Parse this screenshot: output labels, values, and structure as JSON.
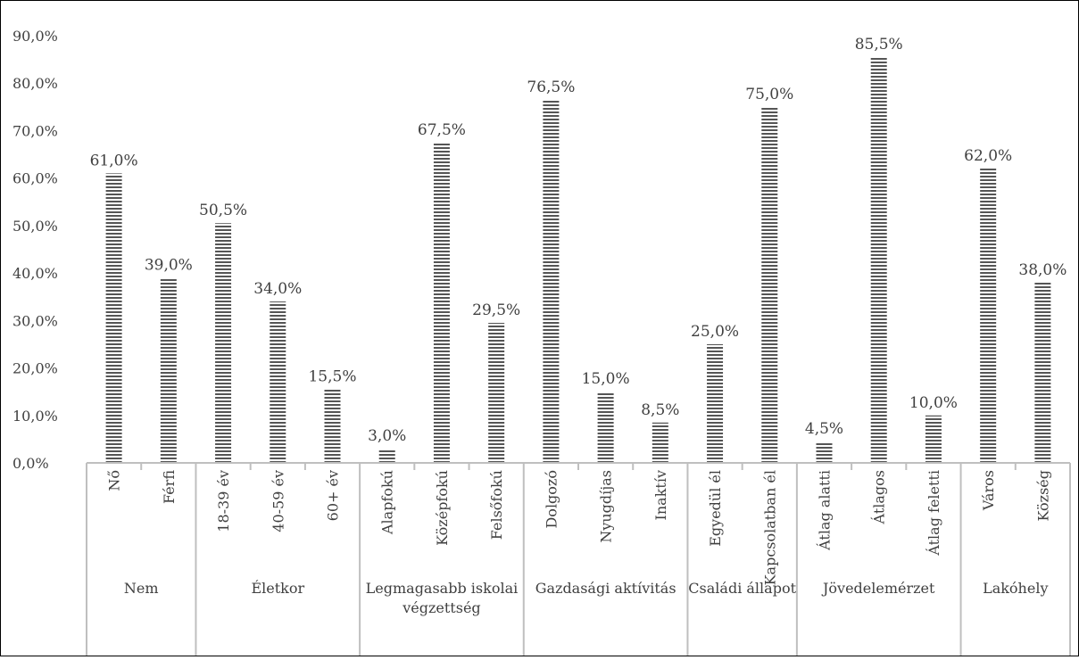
{
  "chart_data": {
    "type": "bar",
    "title": "",
    "xlabel": "",
    "ylabel": "",
    "ylim": [
      0,
      90
    ],
    "y_ticks": [
      "0,0%",
      "10,0%",
      "20,0%",
      "30,0%",
      "40,0%",
      "50,0%",
      "60,0%",
      "70,0%",
      "80,0%",
      "90,0%"
    ],
    "grid": false,
    "legend": "none",
    "colors": {
      "bar_fill": "#ffffff",
      "bar_stripe": "#555555",
      "axis": "#bfbfbf",
      "text": "#404040"
    },
    "groups": [
      {
        "label": "Nem",
        "items": [
          {
            "category": "Nő",
            "value": 61.0,
            "label": "61,0%"
          },
          {
            "category": "Férfi",
            "value": 39.0,
            "label": "39,0%"
          }
        ]
      },
      {
        "label": "Életkor",
        "items": [
          {
            "category": "18-39 év",
            "value": 50.5,
            "label": "50,5%"
          },
          {
            "category": "40-59 év",
            "value": 34.0,
            "label": "34,0%"
          },
          {
            "category": "60+ év",
            "value": 15.5,
            "label": "15,5%"
          }
        ]
      },
      {
        "label": "Legmagasabb iskolai végzettség",
        "label_lines": [
          "Legmagasabb iskolai",
          "végzettség"
        ],
        "items": [
          {
            "category": "Alapfokú",
            "value": 3.0,
            "label": "3,0%"
          },
          {
            "category": "Középfokú",
            "value": 67.5,
            "label": "67,5%"
          },
          {
            "category": "Felsőfokú",
            "value": 29.5,
            "label": "29,5%"
          }
        ]
      },
      {
        "label": "Gazdasági aktívitás",
        "items": [
          {
            "category": "Dolgozó",
            "value": 76.5,
            "label": "76,5%"
          },
          {
            "category": "Nyugdíjas",
            "value": 15.0,
            "label": "15,0%"
          },
          {
            "category": "Inaktív",
            "value": 8.5,
            "label": "8,5%"
          }
        ]
      },
      {
        "label": "Családi állapot",
        "items": [
          {
            "category": "Egyedül él",
            "value": 25.0,
            "label": "25,0%"
          },
          {
            "category": "Kapcsolatban él",
            "value": 75.0,
            "label": "75,0%"
          }
        ]
      },
      {
        "label": "Jövedelemérzet",
        "items": [
          {
            "category": "Átlag alatti",
            "value": 4.5,
            "label": "4,5%"
          },
          {
            "category": "Átlagos",
            "value": 85.5,
            "label": "85,5%"
          },
          {
            "category": "Átlag feletti",
            "value": 10.0,
            "label": "10,0%"
          }
        ]
      },
      {
        "label": "Lakóhely",
        "items": [
          {
            "category": "Város",
            "value": 62.0,
            "label": "62,0%"
          },
          {
            "category": "Község",
            "value": 38.0,
            "label": "38,0%"
          }
        ]
      }
    ]
  }
}
